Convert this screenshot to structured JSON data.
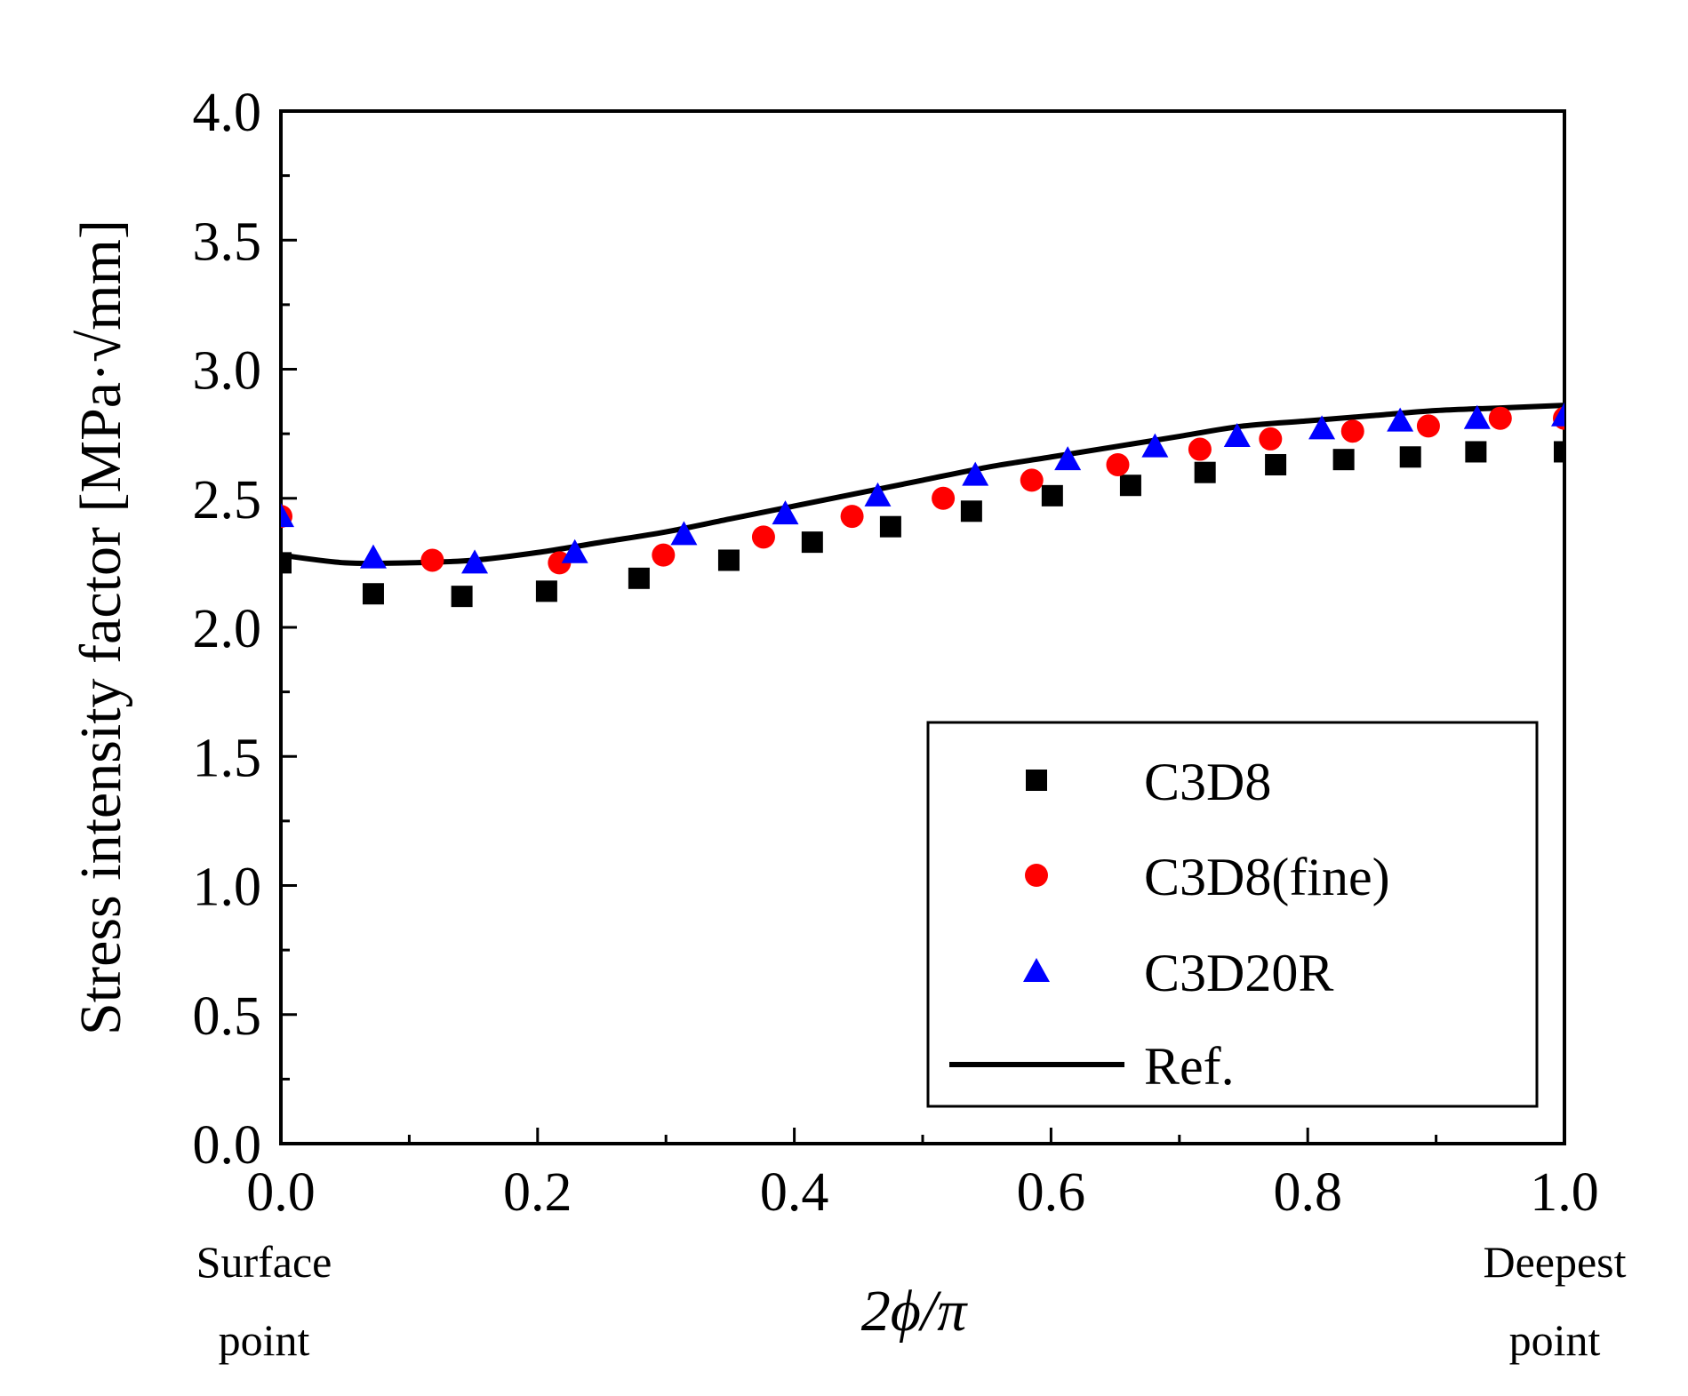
{
  "chart_data": {
    "type": "scatter",
    "xlabel": "2ϕ/π",
    "ylabel": "Stress intensity factor [MPa·√mm]",
    "xlim": [
      0.0,
      1.0
    ],
    "ylim": [
      0.0,
      4.0
    ],
    "xticks": [
      "0.0",
      "0.2",
      "0.4",
      "0.6",
      "0.8",
      "1.0"
    ],
    "yticks": [
      "0.0",
      "0.5",
      "1.0",
      "1.5",
      "2.0",
      "2.5",
      "3.0",
      "3.5",
      "4.0"
    ],
    "xtick_values": [
      0.0,
      0.2,
      0.4,
      0.6,
      0.8,
      1.0
    ],
    "ytick_values": [
      0.0,
      0.5,
      1.0,
      1.5,
      2.0,
      2.5,
      3.0,
      3.5,
      4.0
    ],
    "annotations": {
      "left_line1": "Surface",
      "left_line2": "point",
      "right_line1": "Deepest",
      "right_line2": "point"
    },
    "legend_position": "bottom-right",
    "series": [
      {
        "name": "C3D8",
        "marker": "square",
        "color": "#000000",
        "x": [
          0.0,
          0.072,
          0.141,
          0.207,
          0.279,
          0.349,
          0.414,
          0.475,
          0.538,
          0.601,
          0.662,
          0.72,
          0.775,
          0.828,
          0.88,
          0.931,
          1.0
        ],
        "y": [
          2.25,
          2.13,
          2.12,
          2.14,
          2.19,
          2.26,
          2.33,
          2.39,
          2.45,
          2.51,
          2.55,
          2.6,
          2.63,
          2.65,
          2.66,
          2.68,
          2.68
        ]
      },
      {
        "name": "C3D8(fine)",
        "marker": "circle",
        "color": "#ff0000",
        "x": [
          0.0,
          0.118,
          0.217,
          0.298,
          0.376,
          0.445,
          0.516,
          0.585,
          0.652,
          0.716,
          0.771,
          0.835,
          0.894,
          0.95,
          1.0
        ],
        "y": [
          2.43,
          2.26,
          2.25,
          2.28,
          2.35,
          2.43,
          2.5,
          2.57,
          2.63,
          2.69,
          2.73,
          2.76,
          2.78,
          2.81,
          2.81
        ]
      },
      {
        "name": "C3D20R",
        "marker": "triangle",
        "color": "#0000ff",
        "x": [
          0.0,
          0.072,
          0.151,
          0.229,
          0.314,
          0.393,
          0.465,
          0.541,
          0.613,
          0.681,
          0.745,
          0.811,
          0.872,
          0.932,
          1.0
        ],
        "y": [
          2.43,
          2.27,
          2.25,
          2.29,
          2.36,
          2.44,
          2.51,
          2.59,
          2.65,
          2.7,
          2.74,
          2.77,
          2.8,
          2.81,
          2.82
        ]
      },
      {
        "name": "Ref.",
        "marker": "line",
        "color": "#000000",
        "x": [
          0.0,
          0.05,
          0.1,
          0.15,
          0.2,
          0.25,
          0.3,
          0.35,
          0.4,
          0.45,
          0.5,
          0.55,
          0.6,
          0.65,
          0.7,
          0.75,
          0.8,
          0.85,
          0.9,
          0.95,
          1.0
        ],
        "y": [
          2.28,
          2.25,
          2.25,
          2.26,
          2.29,
          2.33,
          2.37,
          2.42,
          2.47,
          2.52,
          2.57,
          2.62,
          2.66,
          2.7,
          2.74,
          2.78,
          2.8,
          2.82,
          2.84,
          2.85,
          2.86
        ]
      }
    ]
  }
}
